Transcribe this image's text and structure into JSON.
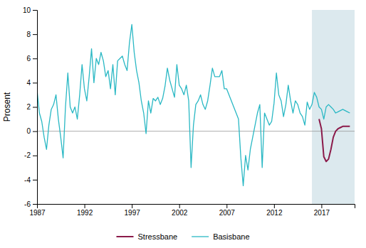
{
  "chart_data": {
    "type": "line",
    "ylabel": "Prosent",
    "xlim": [
      1987,
      2020.5
    ],
    "ylim": [
      -6,
      10
    ],
    "xticks": [
      1987,
      1992,
      1997,
      2002,
      2007,
      2012,
      2017
    ],
    "yticks": [
      -6,
      -4,
      -2,
      0,
      2,
      4,
      6,
      8,
      10
    ],
    "grid": false,
    "legend": "bottom",
    "hlines": [
      0
    ],
    "shade": {
      "start": 2016.0,
      "end": 2020.5,
      "color": "#dce9ee"
    },
    "series": [
      {
        "name": "Stressbane",
        "color": "#8b1a4a",
        "x": [
          2016.75,
          2017.0,
          2017.25,
          2017.5,
          2017.75,
          2018.0,
          2018.25,
          2018.5,
          2018.75,
          2019.0,
          2019.25,
          2019.5,
          2019.75,
          2020.0
        ],
        "values": [
          1.0,
          0.2,
          -2.1,
          -2.5,
          -2.3,
          -1.5,
          -0.5,
          0.0,
          0.2,
          0.3,
          0.4,
          0.4,
          0.4,
          0.4
        ]
      },
      {
        "name": "Basisbane",
        "color": "#2ab8c4",
        "x": [
          1987.0,
          1987.25,
          1987.5,
          1987.75,
          1988.0,
          1988.25,
          1988.5,
          1988.75,
          1989.0,
          1989.25,
          1989.5,
          1989.75,
          1990.0,
          1990.25,
          1990.5,
          1990.75,
          1991.0,
          1991.25,
          1991.5,
          1991.75,
          1992.0,
          1992.25,
          1992.5,
          1992.75,
          1993.0,
          1993.25,
          1993.5,
          1993.75,
          1994.0,
          1994.25,
          1994.5,
          1994.75,
          1995.0,
          1995.25,
          1995.5,
          1995.75,
          1996.0,
          1996.25,
          1996.5,
          1996.75,
          1997.0,
          1997.25,
          1997.5,
          1997.75,
          1998.0,
          1998.25,
          1998.5,
          1998.75,
          1999.0,
          1999.25,
          1999.5,
          1999.75,
          2000.0,
          2000.25,
          2000.5,
          2000.75,
          2001.0,
          2001.25,
          2001.5,
          2001.75,
          2002.0,
          2002.25,
          2002.5,
          2002.75,
          2003.0,
          2003.25,
          2003.5,
          2003.75,
          2004.0,
          2004.25,
          2004.5,
          2004.75,
          2005.0,
          2005.25,
          2005.5,
          2005.75,
          2006.0,
          2006.25,
          2006.5,
          2006.75,
          2007.0,
          2007.25,
          2007.5,
          2007.75,
          2008.0,
          2008.25,
          2008.5,
          2008.75,
          2009.0,
          2009.25,
          2009.5,
          2009.75,
          2010.0,
          2010.25,
          2010.5,
          2010.75,
          2011.0,
          2011.25,
          2011.5,
          2011.75,
          2012.0,
          2012.25,
          2012.5,
          2012.75,
          2013.0,
          2013.25,
          2013.5,
          2013.75,
          2014.0,
          2014.25,
          2014.5,
          2014.75,
          2015.0,
          2015.25,
          2015.5,
          2015.75,
          2016.0,
          2016.25,
          2016.5,
          2016.75,
          2017.0,
          2017.25,
          2017.5,
          2017.75,
          2018.0,
          2018.25,
          2018.5,
          2018.75,
          2019.0,
          2019.25,
          2019.5,
          2019.75,
          2020.0
        ],
        "values": [
          3.4,
          1.5,
          0.8,
          -0.5,
          -1.5,
          0.5,
          1.8,
          2.2,
          3.0,
          1.0,
          -0.5,
          -2.2,
          2.0,
          4.8,
          2.0,
          1.5,
          2.0,
          1.0,
          3.0,
          5.5,
          3.5,
          2.5,
          4.5,
          6.8,
          4.0,
          6.0,
          5.5,
          6.5,
          5.8,
          4.5,
          5.0,
          3.5,
          5.5,
          3.0,
          5.8,
          6.0,
          6.2,
          5.5,
          5.0,
          7.3,
          8.8,
          6.5,
          5.0,
          4.0,
          2.5,
          1.5,
          -0.2,
          2.5,
          1.5,
          2.7,
          2.5,
          2.8,
          2.2,
          2.7,
          3.7,
          5.2,
          4.2,
          3.5,
          2.8,
          5.5,
          3.8,
          3.5,
          3.0,
          3.8,
          2.5,
          -3.0,
          0.5,
          2.2,
          2.5,
          3.0,
          2.2,
          1.8,
          2.5,
          3.8,
          5.2,
          4.5,
          4.5,
          4.5,
          5.0,
          3.5,
          3.5,
          3.0,
          2.5,
          2.0,
          1.5,
          1.0,
          -2.2,
          -4.5,
          -2.0,
          -3.2,
          -1.5,
          -0.5,
          0.5,
          1.5,
          2.2,
          -3.0,
          1.5,
          1.0,
          0.5,
          0.8,
          2.3,
          4.8,
          3.0,
          2.5,
          1.2,
          2.2,
          3.8,
          2.5,
          1.5,
          2.5,
          2.2,
          1.5,
          1.2,
          0.5,
          2.4,
          1.8,
          2.2,
          3.2,
          2.8,
          2.0,
          1.8,
          1.0,
          2.0,
          2.2,
          2.0,
          1.8,
          1.5,
          1.6,
          1.7,
          1.8,
          1.7,
          1.6,
          1.5
        ]
      }
    ]
  }
}
